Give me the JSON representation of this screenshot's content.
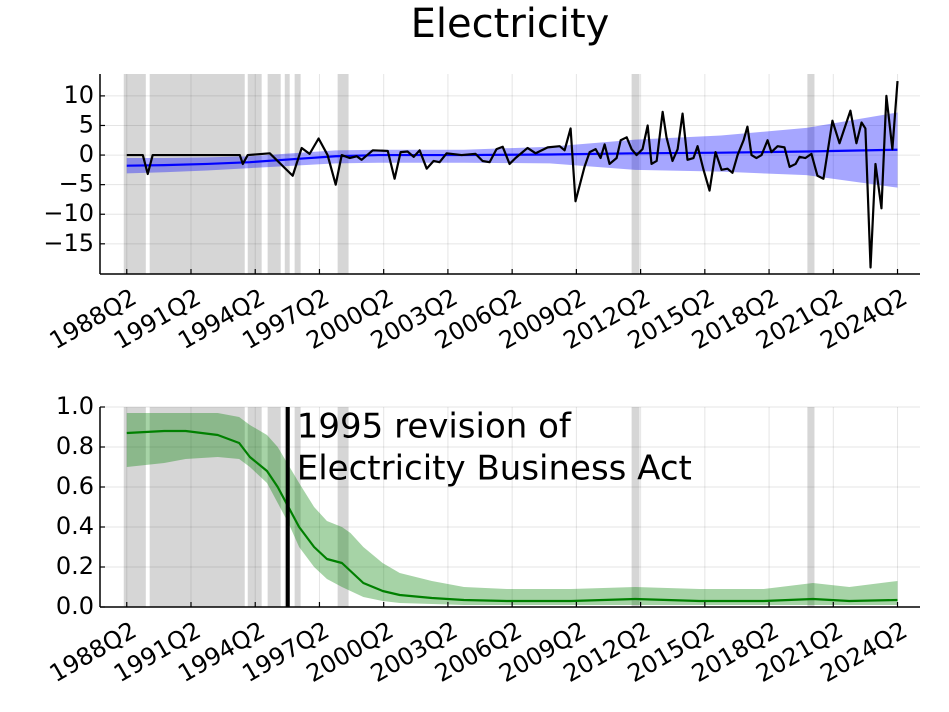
{
  "chart_data": [
    {
      "type": "line",
      "title": "Electricity",
      "xlim": [
        1987.0,
        2025.3
      ],
      "ylim": [
        -20.1,
        13.7
      ],
      "grid": true,
      "xticks": [
        {
          "value": 1988.25,
          "label": "1988Q2"
        },
        {
          "value": 1991.25,
          "label": "1991Q2"
        },
        {
          "value": 1994.25,
          "label": "1994Q2"
        },
        {
          "value": 1997.25,
          "label": "1997Q2"
        },
        {
          "value": 2000.25,
          "label": "2000Q2"
        },
        {
          "value": 2003.25,
          "label": "2003Q2"
        },
        {
          "value": 2006.25,
          "label": "2006Q2"
        },
        {
          "value": 2009.25,
          "label": "2009Q2"
        },
        {
          "value": 2012.25,
          "label": "2012Q2"
        },
        {
          "value": 2015.25,
          "label": "2015Q2"
        },
        {
          "value": 2018.25,
          "label": "2018Q2"
        },
        {
          "value": 2021.25,
          "label": "2021Q2"
        },
        {
          "value": 2024.25,
          "label": "2024Q2"
        }
      ],
      "yticks": [
        {
          "value": -15,
          "label": "−15"
        },
        {
          "value": -10,
          "label": "−10"
        },
        {
          "value": -5,
          "label": "−5"
        },
        0,
        5,
        10
      ],
      "shaded": [
        [
          1988.11,
          1989.14
        ],
        [
          1989.32,
          1993.76
        ],
        [
          1993.9,
          1994.55
        ],
        [
          1994.83,
          1995.44
        ],
        [
          1995.63,
          1995.86
        ],
        [
          1996.09,
          1996.37
        ],
        [
          1998.1,
          1998.61
        ],
        [
          2011.83,
          2012.2
        ],
        [
          2020.04,
          2020.37
        ]
      ],
      "shade_color": "#c8c8c8",
      "series": [
        {
          "color": "#0000ff",
          "x": [
            1988.25,
            1990,
            1992,
            1994,
            1996,
            1998,
            2000,
            2004,
            2008,
            2012,
            2016,
            2020,
            2024.25
          ],
          "values": [
            -1.8,
            -1.7,
            -1.5,
            -1.2,
            -0.7,
            -0.2,
            0,
            0,
            0.1,
            0.3,
            0.4,
            0.6,
            0.9
          ],
          "lower": [
            -3.1,
            -2.9,
            -2.6,
            -2.2,
            -1.8,
            -1.4,
            -1.3,
            -1.3,
            -1.4,
            -2.5,
            -2.8,
            -3.4,
            -5.5
          ],
          "upper": [
            -0.5,
            -0.5,
            -0.4,
            -0.2,
            0.3,
            0.8,
            0.9,
            0.9,
            1.4,
            2.6,
            3.3,
            4.6,
            7.2
          ]
        },
        {
          "color": "#000000",
          "x": [
            1988.25,
            1989.0,
            1989.23,
            1989.46,
            1993.53,
            1993.67,
            1993.9,
            1994.93,
            1996.0,
            1996.42,
            1996.79,
            1997.21,
            1997.63,
            1998.01,
            1998.29,
            1998.66,
            1998.99,
            1999.22,
            1999.74,
            2000.44,
            2000.76,
            2001.04,
            2001.37,
            2001.65,
            2001.93,
            2002.26,
            2002.58,
            2002.86,
            2003.19,
            2003.89,
            2004.54,
            2004.87,
            2005.2,
            2005.52,
            2005.81,
            2006.13,
            2006.41,
            2006.97,
            2007.35,
            2007.91,
            2008.47,
            2008.7,
            2008.98,
            2009.21,
            2009.63,
            2009.87,
            2010.15,
            2010.38,
            2010.57,
            2010.8,
            2011.13,
            2011.32,
            2011.6,
            2011.83,
            2012.06,
            2012.34,
            2012.58,
            2012.76,
            2013.0,
            2013.28,
            2013.46,
            2013.74,
            2013.98,
            2014.21,
            2014.44,
            2014.72,
            2014.91,
            2015.19,
            2015.47,
            2015.75,
            2016.03,
            2016.31,
            2016.54,
            2016.78,
            2017.06,
            2017.24,
            2017.43,
            2017.66,
            2017.9,
            2018.18,
            2018.36,
            2018.65,
            2018.97,
            2019.21,
            2019.49,
            2019.67,
            2019.95,
            2020.23,
            2020.51,
            2020.79,
            2021.21,
            2021.54,
            2022.05,
            2022.33,
            2022.57,
            2022.75,
            2022.99,
            2023.22,
            2023.5,
            2023.73,
            2024.01,
            2024.25
          ],
          "values": [
            0,
            0,
            -3.2,
            0,
            0,
            -1.5,
            0,
            0.3,
            -3.5,
            1.2,
            0.2,
            2.8,
            0,
            -5,
            0,
            -0.5,
            -0.2,
            -0.8,
            0.8,
            0.7,
            -4,
            0.5,
            0.6,
            -0.3,
            0.8,
            -2.3,
            -1,
            -1.2,
            0.3,
            0,
            0.2,
            -1,
            -1.2,
            1,
            1.4,
            -1.5,
            -0.5,
            1.2,
            0.3,
            1.3,
            1.5,
            0.8,
            4.5,
            -7.8,
            -2,
            0.5,
            1,
            -0.5,
            1.8,
            -1.5,
            -0.5,
            2.5,
            3,
            1,
            0,
            1,
            5,
            -1.5,
            -1,
            7.3,
            3,
            -1,
            1,
            7,
            -0.8,
            -0.5,
            1.5,
            -2.5,
            -6,
            0.5,
            -2.5,
            -2.3,
            -3,
            0,
            2.5,
            4.8,
            0,
            -0.5,
            0,
            2.5,
            0.5,
            1.5,
            1.3,
            -2,
            -1.5,
            -0.3,
            -0.5,
            0.2,
            -3.5,
            -4,
            5.8,
            2,
            7.5,
            2,
            5.5,
            4.5,
            -19,
            -1.5,
            -9,
            10,
            1,
            12.5
          ]
        }
      ]
    },
    {
      "type": "line",
      "xlim": [
        1987.0,
        2025.3
      ],
      "ylim": [
        0,
        1
      ],
      "grid": true,
      "xticks": [
        {
          "value": 1988.25,
          "label": "1988Q2"
        },
        {
          "value": 1991.25,
          "label": "1991Q2"
        },
        {
          "value": 1994.25,
          "label": "1994Q2"
        },
        {
          "value": 1997.25,
          "label": "1997Q2"
        },
        {
          "value": 2000.25,
          "label": "2000Q2"
        },
        {
          "value": 2003.25,
          "label": "2003Q2"
        },
        {
          "value": 2006.25,
          "label": "2006Q2"
        },
        {
          "value": 2009.25,
          "label": "2009Q2"
        },
        {
          "value": 2012.25,
          "label": "2012Q2"
        },
        {
          "value": 2015.25,
          "label": "2015Q2"
        },
        {
          "value": 2018.25,
          "label": "2018Q2"
        },
        {
          "value": 2021.25,
          "label": "2021Q2"
        },
        {
          "value": 2024.25,
          "label": "2024Q2"
        }
      ],
      "yticks": [
        {
          "value": 0,
          "label": "0.0"
        },
        0.2,
        0.4,
        0.6,
        0.8,
        {
          "value": 1,
          "label": "1.0"
        }
      ],
      "shaded": [
        [
          1988.11,
          1989.14
        ],
        [
          1989.32,
          1993.76
        ],
        [
          1993.9,
          1994.55
        ],
        [
          1994.83,
          1995.44
        ],
        [
          1995.63,
          1995.86
        ],
        [
          1996.09,
          1996.37
        ],
        [
          1998.1,
          1998.61
        ],
        [
          2011.83,
          2012.2
        ],
        [
          2020.04,
          2020.37
        ]
      ],
      "shade_color": "#c8c8c8",
      "vline": 1995.77,
      "annotation": [
        "1995 revision of",
        "Electricity Business Act"
      ],
      "series": [
        {
          "color": "#008000",
          "x": [
            1988.25,
            1990,
            1991,
            1992.5,
            1993.5,
            1994,
            1994.8,
            1995.3,
            1995.8,
            1996.3,
            1997,
            1997.6,
            1998.3,
            1998.7,
            1999.3,
            2000.2,
            2001,
            2002.5,
            2004,
            2006,
            2009,
            2012,
            2015,
            2018,
            2020.3,
            2022,
            2024.25
          ],
          "values": [
            0.87,
            0.88,
            0.88,
            0.86,
            0.82,
            0.75,
            0.68,
            0.6,
            0.5,
            0.4,
            0.3,
            0.24,
            0.22,
            0.18,
            0.12,
            0.08,
            0.06,
            0.045,
            0.035,
            0.03,
            0.03,
            0.04,
            0.03,
            0.03,
            0.04,
            0.03,
            0.035
          ],
          "lower": [
            0.7,
            0.72,
            0.74,
            0.75,
            0.74,
            0.7,
            0.62,
            0.52,
            0.42,
            0.3,
            0.2,
            0.14,
            0.1,
            0.08,
            0.05,
            0.03,
            0.02,
            0.015,
            0.01,
            0.01,
            0.01,
            0.01,
            0.01,
            0.01,
            0.01,
            0.01,
            0.01
          ],
          "upper": [
            0.97,
            0.97,
            0.97,
            0.97,
            0.95,
            0.91,
            0.86,
            0.8,
            0.71,
            0.62,
            0.5,
            0.43,
            0.4,
            0.37,
            0.3,
            0.22,
            0.17,
            0.13,
            0.1,
            0.09,
            0.09,
            0.1,
            0.09,
            0.09,
            0.12,
            0.1,
            0.13
          ]
        }
      ]
    }
  ]
}
